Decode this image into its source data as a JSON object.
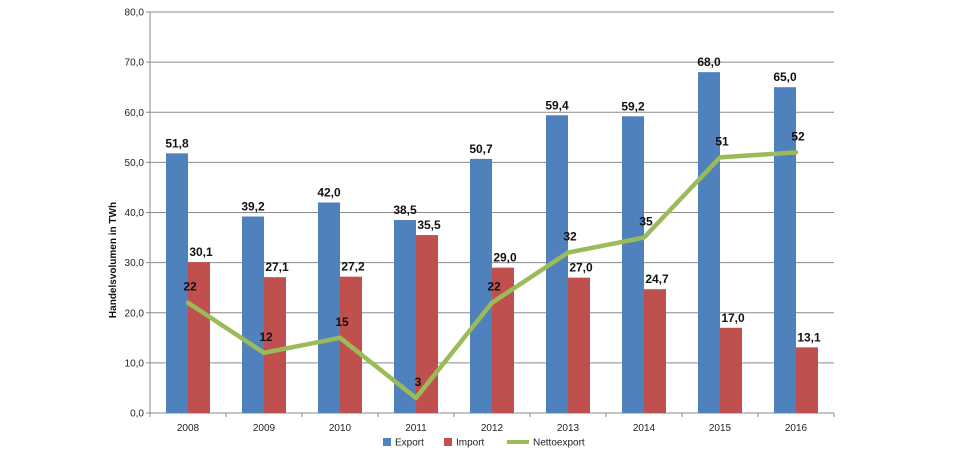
{
  "chart_data": {
    "type": "bar",
    "title": "",
    "xlabel": "",
    "ylabel": "Handelsvolumen in TWh",
    "ylim": [
      0,
      80
    ],
    "yticks": [
      "0,0",
      "10,0",
      "20,0",
      "30,0",
      "40,0",
      "50,0",
      "60,0",
      "70,0",
      "80,0"
    ],
    "grid": true,
    "legend_position": "bottom",
    "categories": [
      "2008",
      "2009",
      "2010",
      "2011",
      "2012",
      "2013",
      "2014",
      "2015",
      "2016"
    ],
    "series": [
      {
        "name": "Export",
        "kind": "bar",
        "color": "#4F81BD",
        "values": [
          51.8,
          39.2,
          42.0,
          38.5,
          50.7,
          59.4,
          59.2,
          68.0,
          65.0
        ],
        "labels": [
          "51,8",
          "39,2",
          "42,0",
          "38,5",
          "50,7",
          "59,4",
          "59,2",
          "68,0",
          "65,0"
        ]
      },
      {
        "name": "Import",
        "kind": "bar",
        "color": "#C0504D",
        "values": [
          30.1,
          27.1,
          27.2,
          35.5,
          29.0,
          27.0,
          24.7,
          17.0,
          13.1
        ],
        "labels": [
          "30,1",
          "27,1",
          "27,2",
          "35,5",
          "29,0",
          "27,0",
          "24,7",
          "17,0",
          "13,1"
        ]
      },
      {
        "name": "Nettoexport",
        "kind": "line",
        "color": "#9BBB59",
        "values": [
          22,
          12,
          15,
          3,
          22,
          32,
          35,
          51,
          52
        ],
        "labels": [
          "22",
          "12",
          "15",
          "3",
          "22",
          "32",
          "35",
          "51",
          "52"
        ]
      }
    ]
  }
}
